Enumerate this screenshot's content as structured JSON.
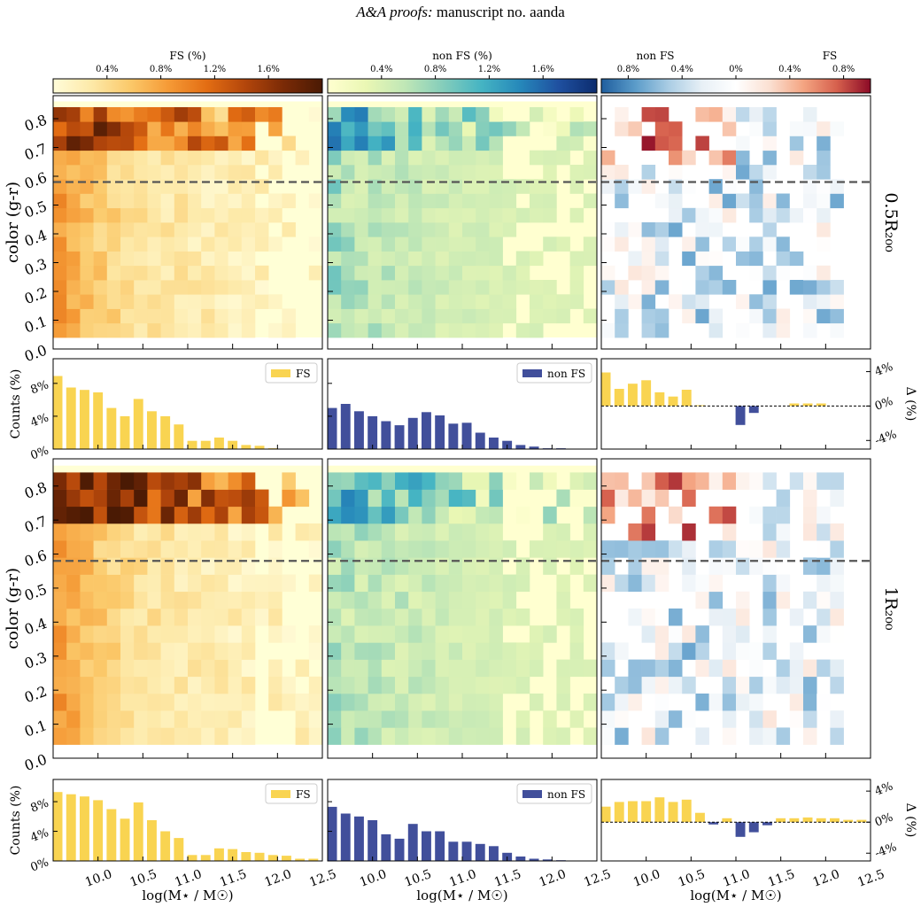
{
  "header": {
    "title_italic": "A&A proofs:",
    "title_rest": "manuscript no. aanda"
  },
  "colorbars": [
    {
      "label": "FS (%)",
      "ticks": [
        "0.4%",
        "0.8%",
        "1.2%",
        "1.6%"
      ],
      "palette": [
        "#fffcd9",
        "#fde9a8",
        "#fbc96a",
        "#f59a36",
        "#e36d13",
        "#b3460b",
        "#7a2a06",
        "#4a1a04"
      ]
    },
    {
      "label": "non FS (%)",
      "ticks": [
        "0.4%",
        "0.8%",
        "1.2%",
        "1.6%"
      ],
      "palette": [
        "#ffffd0",
        "#eaf7b4",
        "#c0e7b6",
        "#84cdbb",
        "#45b4c3",
        "#2688ba",
        "#1f50a0",
        "#0c2c6e"
      ]
    },
    {
      "label_left": "non FS",
      "label_right": "FS",
      "ticks": [
        "0.8%",
        "0.4%",
        "0%",
        "0.4%",
        "0.8%"
      ],
      "palette": [
        "#1f5e9e",
        "#5a9bc9",
        "#aacde4",
        "#e8f0f6",
        "#ffffff",
        "#fbe0d2",
        "#f4a582",
        "#d6604d",
        "#8b0a26"
      ]
    }
  ],
  "row_labels": [
    "0.5R₂₀₀",
    "1R₂₀₀"
  ],
  "colors": {
    "fs_bar": "#f9d451",
    "nonfs_bar": "#414f9b"
  },
  "chart_data": [
    {
      "type": "heatmap",
      "panel": "FS, 0.5R200",
      "xlabel": "",
      "ylabel": "color (g-r)",
      "xlim": [
        9.5,
        12.5
      ],
      "ylim": [
        0.0,
        0.88
      ],
      "y_ticks": [
        "0.0",
        "0.1",
        "0.2",
        "0.3",
        "0.4",
        "0.5",
        "0.6",
        "0.7",
        "0.8"
      ],
      "separator_y": 0.58
    },
    {
      "type": "heatmap",
      "panel": "non FS, 0.5R200",
      "xlim": [
        9.5,
        12.5
      ],
      "ylim": [
        0.0,
        0.88
      ],
      "separator_y": 0.58
    },
    {
      "type": "heatmap",
      "panel": "FS - non FS, 0.5R200",
      "xlim": [
        9.5,
        12.5
      ],
      "ylim": [
        0.0,
        0.88
      ],
      "separator_y": 0.58
    },
    {
      "type": "bar",
      "panel": "FS counts, 0.5R200",
      "ylabel": "Counts (%)",
      "legend": "FS",
      "y_ticks": [
        "0%",
        "4%",
        "8%"
      ],
      "ylim": [
        0,
        11
      ],
      "x": [
        9.55,
        9.7,
        9.85,
        10.0,
        10.15,
        10.3,
        10.45,
        10.6,
        10.75,
        10.9,
        11.05,
        11.2,
        11.35,
        11.5,
        11.65,
        11.8,
        11.95,
        12.1,
        12.25,
        12.4
      ],
      "values": [
        8.9,
        7.5,
        7.2,
        6.9,
        5.0,
        4.0,
        6.1,
        4.6,
        4.0,
        3.0,
        1.0,
        1.0,
        1.4,
        1.0,
        0.5,
        0.4,
        0.1,
        0.05,
        0.0,
        0.0
      ]
    },
    {
      "type": "bar",
      "panel": "non FS counts, 0.5R200",
      "legend": "non FS",
      "ylim": [
        0,
        11
      ],
      "x": [
        9.55,
        9.7,
        9.85,
        10.0,
        10.15,
        10.3,
        10.45,
        10.6,
        10.75,
        10.9,
        11.05,
        11.2,
        11.35,
        11.5,
        11.65,
        11.8,
        11.95,
        12.1,
        12.25,
        12.4
      ],
      "values": [
        5.0,
        5.5,
        4.6,
        4.0,
        3.4,
        2.9,
        3.8,
        4.5,
        4.1,
        3.1,
        3.2,
        2.0,
        1.4,
        1.0,
        0.5,
        0.3,
        0.1,
        0.1,
        0.0,
        0.0
      ]
    },
    {
      "type": "bar",
      "panel": "Delta, 0.5R200",
      "ylabel": "Δ (%)",
      "y_ticks": [
        "4%",
        "0%",
        "-4%"
      ],
      "ylim": [
        -5,
        5.5
      ],
      "x": [
        9.55,
        9.7,
        9.85,
        10.0,
        10.15,
        10.3,
        10.45,
        10.6,
        10.75,
        10.9,
        11.05,
        11.2,
        11.35,
        11.5,
        11.65,
        11.8,
        11.95,
        12.1,
        12.25,
        12.4
      ],
      "values": [
        3.9,
        2.0,
        2.6,
        3.0,
        1.6,
        1.1,
        1.9,
        0.1,
        0.0,
        0.0,
        -2.2,
        -0.8,
        0.0,
        0.0,
        0.3,
        0.3,
        0.3,
        0.0,
        0.0,
        0.0
      ]
    },
    {
      "type": "heatmap",
      "panel": "FS, 1R200",
      "ylabel": "color (g-r)",
      "xlim": [
        9.5,
        12.5
      ],
      "ylim": [
        0.0,
        0.88
      ],
      "separator_y": 0.58,
      "y_ticks": [
        "0.0",
        "0.1",
        "0.2",
        "0.3",
        "0.4",
        "0.5",
        "0.6",
        "0.7",
        "0.8"
      ]
    },
    {
      "type": "heatmap",
      "panel": "non FS, 1R200",
      "xlim": [
        9.5,
        12.5
      ],
      "ylim": [
        0.0,
        0.88
      ],
      "separator_y": 0.58
    },
    {
      "type": "heatmap",
      "panel": "FS - non FS, 1R200",
      "xlim": [
        9.5,
        12.5
      ],
      "ylim": [
        0.0,
        0.88
      ],
      "separator_y": 0.58
    },
    {
      "type": "bar",
      "panel": "FS counts, 1R200",
      "ylabel": "Counts (%)",
      "legend": "FS",
      "y_ticks": [
        "0%",
        "4%",
        "8%"
      ],
      "ylim": [
        0,
        11
      ],
      "xlabel": "log(M⋆ / M☉)",
      "x_ticks": [
        "10.0",
        "10.5",
        "11.0",
        "11.5",
        "12.0",
        "12.5"
      ],
      "x": [
        9.55,
        9.7,
        9.85,
        10.0,
        10.15,
        10.3,
        10.45,
        10.6,
        10.75,
        10.9,
        11.05,
        11.2,
        11.35,
        11.5,
        11.65,
        11.8,
        11.95,
        12.1,
        12.25,
        12.4
      ],
      "values": [
        9.3,
        9.0,
        8.7,
        8.2,
        7.0,
        5.7,
        7.9,
        5.5,
        4.0,
        3.1,
        0.8,
        0.8,
        1.7,
        1.6,
        1.2,
        1.1,
        0.8,
        0.7,
        0.3,
        0.3
      ]
    },
    {
      "type": "bar",
      "panel": "non FS counts, 1R200",
      "legend": "non FS",
      "ylim": [
        0,
        11
      ],
      "xlabel": "log(M⋆ / M☉)",
      "x_ticks": [
        "10.0",
        "10.5",
        "11.0",
        "11.5",
        "12.0",
        "12.5"
      ],
      "x": [
        9.55,
        9.7,
        9.85,
        10.0,
        10.15,
        10.3,
        10.45,
        10.6,
        10.75,
        10.9,
        11.05,
        11.2,
        11.35,
        11.5,
        11.65,
        11.8,
        11.95,
        12.1,
        12.25,
        12.4
      ],
      "values": [
        7.3,
        6.4,
        6.0,
        5.5,
        3.6,
        3.0,
        5.0,
        4.0,
        4.0,
        2.6,
        2.6,
        2.3,
        2.0,
        1.1,
        0.6,
        0.3,
        0.2,
        0.1,
        0.0,
        0.0
      ]
    },
    {
      "type": "bar",
      "panel": "Delta, 1R200",
      "ylabel": "Δ (%)",
      "y_ticks": [
        "4%",
        "0%",
        "-4%"
      ],
      "ylim": [
        -5,
        5.5
      ],
      "xlabel": "log(M⋆ / M☉)",
      "x_ticks": [
        "10.0",
        "10.5",
        "11.0",
        "11.5",
        "12.0",
        "12.5"
      ],
      "x": [
        9.55,
        9.7,
        9.85,
        10.0,
        10.15,
        10.3,
        10.45,
        10.6,
        10.75,
        10.9,
        11.05,
        11.2,
        11.35,
        11.5,
        11.65,
        11.8,
        11.95,
        12.1,
        12.25,
        12.4
      ],
      "values": [
        2.0,
        2.6,
        2.7,
        2.7,
        3.2,
        2.6,
        2.9,
        1.2,
        -0.3,
        0.5,
        -1.9,
        -1.3,
        -0.4,
        0.5,
        0.5,
        0.6,
        0.5,
        0.5,
        0.3,
        0.3
      ]
    }
  ]
}
